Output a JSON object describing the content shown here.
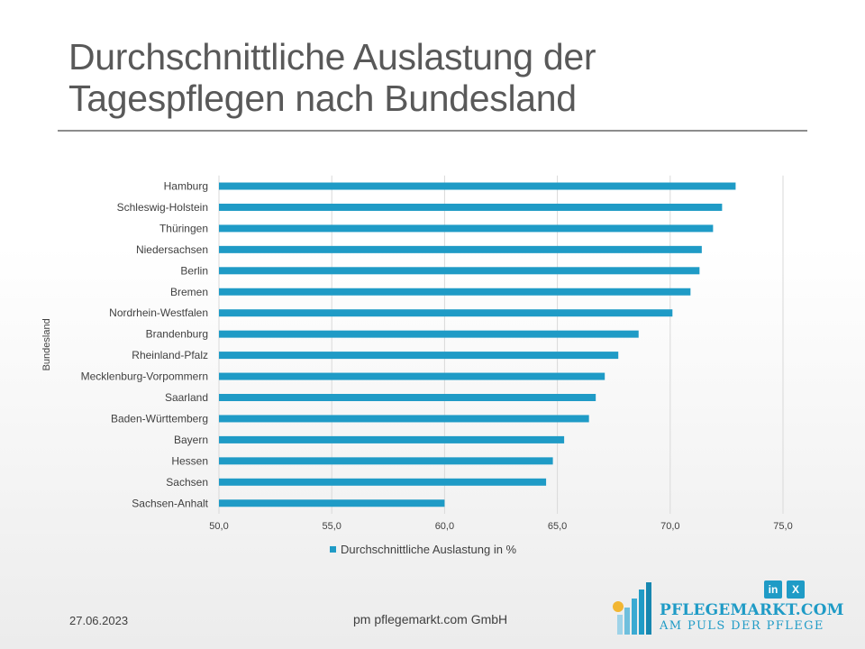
{
  "slide": {
    "title": "Durchschnittliche Auslastung der\nTagespflegen nach Bundesland",
    "date": "27.06.2023",
    "company": "pm pflegemarkt.com GmbH",
    "logo": {
      "name": "PFLEGEMARKT.COM",
      "tagline": "AM PULS DER PFLEGE",
      "social": [
        "in",
        "X"
      ]
    }
  },
  "chart_data": {
    "type": "bar",
    "orientation": "horizontal",
    "ylabel": "Bundesland",
    "categories": [
      "Hamburg",
      "Schleswig-Holstein",
      "Thüringen",
      "Niedersachsen",
      "Berlin",
      "Bremen",
      "Nordrhein-Westfalen",
      "Brandenburg",
      "Rheinland-Pfalz",
      "Mecklenburg-Vorpommern",
      "Saarland",
      "Baden-Württemberg",
      "Bayern",
      "Hessen",
      "Sachsen",
      "Sachsen-Anhalt"
    ],
    "series": [
      {
        "name": "Durchschnittliche Auslastung in %",
        "values": [
          72.9,
          72.3,
          71.9,
          71.4,
          71.3,
          70.9,
          70.1,
          68.6,
          67.7,
          67.1,
          66.7,
          66.4,
          65.3,
          64.8,
          64.5,
          60.0
        ]
      }
    ],
    "xlim": [
      50,
      75
    ],
    "xticks": [
      "50,0",
      "55,0",
      "60,0",
      "65,0",
      "70,0",
      "75,0"
    ],
    "grid": true,
    "legend_position": "bottom",
    "bar_color": "#1f9bc6"
  }
}
